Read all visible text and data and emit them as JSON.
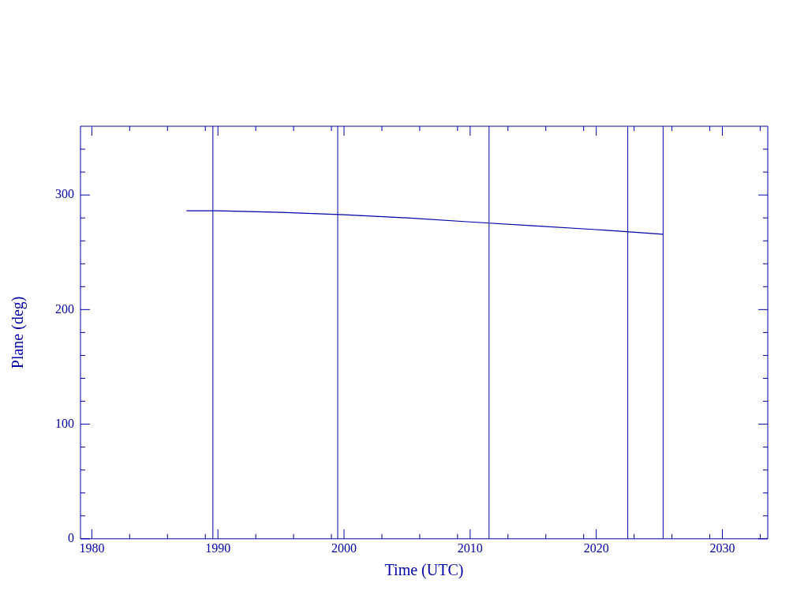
{
  "chart_data": {
    "type": "line",
    "xlabel": "Time (UTC)",
    "ylabel": "Plane (deg)",
    "x": [
      1987.5,
      1990,
      1995,
      2000,
      2005,
      2010,
      2015,
      2020,
      2025.3
    ],
    "series": [
      {
        "color": "#0000aa",
        "values": [
          286.3,
          286.2,
          284.8,
          282.8,
          280.0,
          276.5,
          273.2,
          269.8,
          265.8
        ]
      }
    ],
    "xlim": [
      1979.1,
      2033.6
    ],
    "ylim": [
      0,
      360
    ],
    "xticks": [
      1980,
      {
        "value": 1983,
        "label": null
      },
      {
        "value": 1986,
        "label": null
      },
      {
        "value": 1989,
        "label": null
      },
      1990,
      {
        "value": 1993,
        "label": null
      },
      {
        "value": 1996,
        "label": null
      },
      {
        "value": 1999,
        "label": null
      },
      2000,
      {
        "value": 2003,
        "label": null
      },
      {
        "value": 2006,
        "label": null
      },
      {
        "value": 2009,
        "label": null
      },
      2010,
      {
        "value": 2013,
        "label": null
      },
      {
        "value": 2016,
        "label": null
      },
      {
        "value": 2019,
        "label": null
      },
      2020,
      {
        "value": 2023,
        "label": null
      },
      {
        "value": 2026,
        "label": null
      },
      {
        "value": 2029,
        "label": null
      },
      2030,
      {
        "value": 2033,
        "label": null
      }
    ],
    "yticks": [
      0,
      {
        "value": 20,
        "label": null
      },
      {
        "value": 40,
        "label": null
      },
      {
        "value": 60,
        "label": null
      },
      {
        "value": 80,
        "label": null
      },
      100,
      {
        "value": 120,
        "label": null
      },
      {
        "value": 140,
        "label": null
      },
      {
        "value": 160,
        "label": null
      },
      {
        "value": 180,
        "label": null
      },
      200,
      {
        "value": 220,
        "label": null
      },
      {
        "value": 240,
        "label": null
      },
      {
        "value": 260,
        "label": null
      },
      {
        "value": 280,
        "label": null
      },
      300,
      {
        "value": 320,
        "label": null
      },
      {
        "value": 340,
        "label": null
      }
    ],
    "ref_lines": [
      {
        "axis": "x",
        "value": 1989.6,
        "color": "#0000aa"
      },
      {
        "axis": "x",
        "value": 1999.5,
        "color": "#0000aa"
      },
      {
        "axis": "x",
        "value": 2011.5,
        "color": "#0000aa"
      },
      {
        "axis": "x",
        "value": 2022.5,
        "color": "#0000aa"
      },
      {
        "axis": "x",
        "value": 2025.3,
        "color": "#0000aa"
      }
    ],
    "grid": false,
    "legend": false,
    "marker": "none",
    "line_style": "solid"
  }
}
